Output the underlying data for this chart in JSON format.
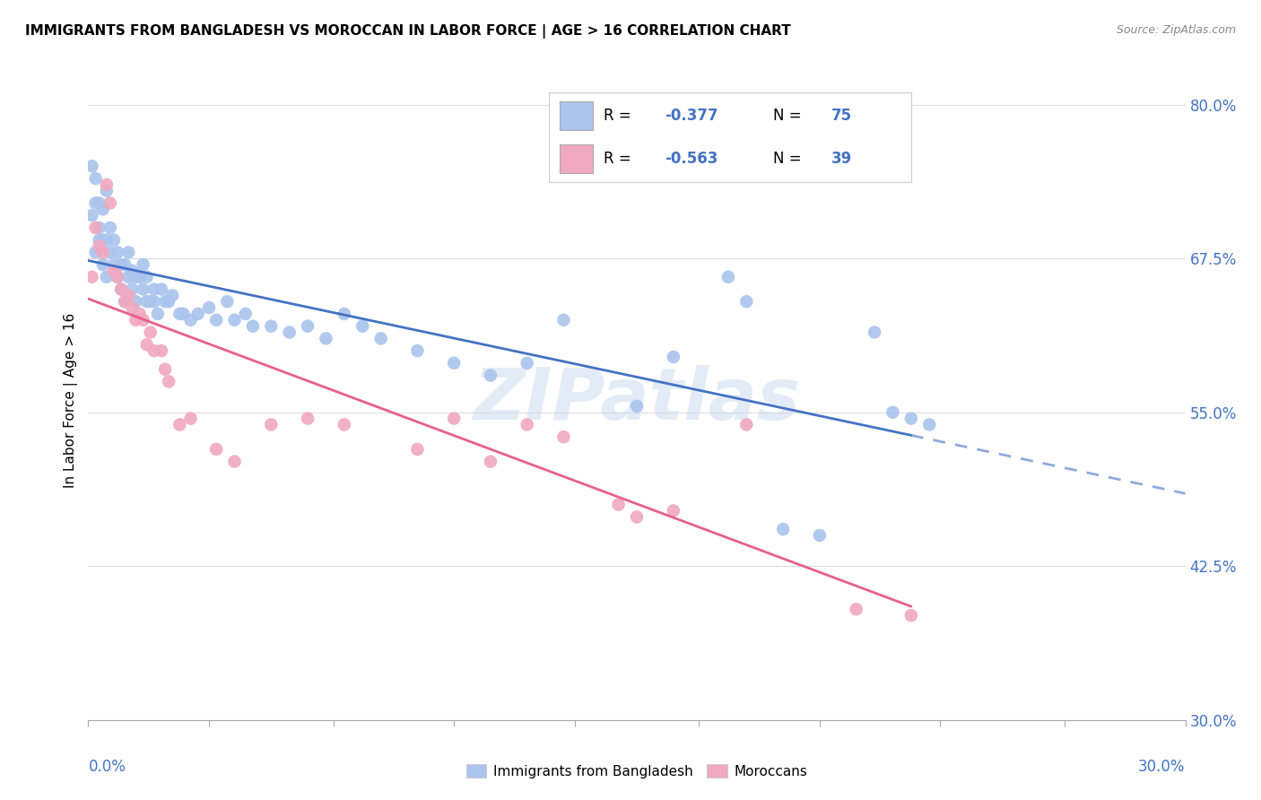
{
  "title": "IMMIGRANTS FROM BANGLADESH VS MOROCCAN IN LABOR FORCE | AGE > 16 CORRELATION CHART",
  "source": "Source: ZipAtlas.com",
  "ylabel": "In Labor Force | Age > 16",
  "ylim": [
    0.3,
    0.82
  ],
  "xlim": [
    0.0,
    0.3
  ],
  "yticks": [
    0.3,
    0.425,
    0.55,
    0.675,
    0.8
  ],
  "ytick_labels": [
    "30.0%",
    "42.5%",
    "55.0%",
    "67.5%",
    "80.0%"
  ],
  "watermark": "ZIPatlas",
  "color_bangladesh": "#aac4ed",
  "color_morocco": "#f0a8c0",
  "color_blue_text": "#4472C4",
  "trendline_blue": "#4472C4",
  "trendline_pink": "#E8608A",
  "background_color": "#ffffff",
  "grid_color": "#dddddd",
  "bangladesh_x": [
    0.001,
    0.002,
    0.002,
    0.003,
    0.003,
    0.004,
    0.004,
    0.005,
    0.005,
    0.006,
    0.006,
    0.007,
    0.007,
    0.008,
    0.008,
    0.009,
    0.009,
    0.01,
    0.01,
    0.011,
    0.011,
    0.012,
    0.012,
    0.013,
    0.013,
    0.014,
    0.015,
    0.015,
    0.016,
    0.016,
    0.017,
    0.018,
    0.018,
    0.019,
    0.02,
    0.021,
    0.022,
    0.023,
    0.025,
    0.026,
    0.028,
    0.03,
    0.033,
    0.035,
    0.038,
    0.04,
    0.043,
    0.045,
    0.05,
    0.055,
    0.06,
    0.065,
    0.07,
    0.075,
    0.08,
    0.09,
    0.1,
    0.11,
    0.12,
    0.13,
    0.15,
    0.16,
    0.175,
    0.18,
    0.19,
    0.2,
    0.215,
    0.22,
    0.225,
    0.23,
    0.001,
    0.002,
    0.003,
    0.004,
    0.005
  ],
  "bangladesh_y": [
    0.71,
    0.68,
    0.72,
    0.69,
    0.7,
    0.67,
    0.69,
    0.66,
    0.69,
    0.68,
    0.7,
    0.69,
    0.67,
    0.66,
    0.68,
    0.65,
    0.67,
    0.64,
    0.67,
    0.66,
    0.68,
    0.65,
    0.665,
    0.66,
    0.64,
    0.66,
    0.65,
    0.67,
    0.64,
    0.66,
    0.64,
    0.65,
    0.64,
    0.63,
    0.65,
    0.64,
    0.64,
    0.645,
    0.63,
    0.63,
    0.625,
    0.63,
    0.635,
    0.625,
    0.64,
    0.625,
    0.63,
    0.62,
    0.62,
    0.615,
    0.62,
    0.61,
    0.63,
    0.62,
    0.61,
    0.6,
    0.59,
    0.58,
    0.59,
    0.625,
    0.555,
    0.595,
    0.66,
    0.64,
    0.455,
    0.45,
    0.615,
    0.55,
    0.545,
    0.54,
    0.75,
    0.74,
    0.72,
    0.715,
    0.73
  ],
  "morocco_x": [
    0.001,
    0.002,
    0.003,
    0.004,
    0.005,
    0.006,
    0.007,
    0.008,
    0.009,
    0.01,
    0.011,
    0.012,
    0.013,
    0.014,
    0.015,
    0.016,
    0.017,
    0.018,
    0.02,
    0.021,
    0.022,
    0.025,
    0.028,
    0.035,
    0.04,
    0.05,
    0.06,
    0.07,
    0.09,
    0.1,
    0.11,
    0.12,
    0.15,
    0.16,
    0.18,
    0.21,
    0.225,
    0.13,
    0.145
  ],
  "morocco_y": [
    0.66,
    0.7,
    0.685,
    0.68,
    0.735,
    0.72,
    0.665,
    0.66,
    0.65,
    0.64,
    0.645,
    0.635,
    0.625,
    0.63,
    0.625,
    0.605,
    0.615,
    0.6,
    0.6,
    0.585,
    0.575,
    0.54,
    0.545,
    0.52,
    0.51,
    0.54,
    0.545,
    0.54,
    0.52,
    0.545,
    0.51,
    0.54,
    0.465,
    0.47,
    0.54,
    0.39,
    0.385,
    0.53,
    0.475
  ]
}
